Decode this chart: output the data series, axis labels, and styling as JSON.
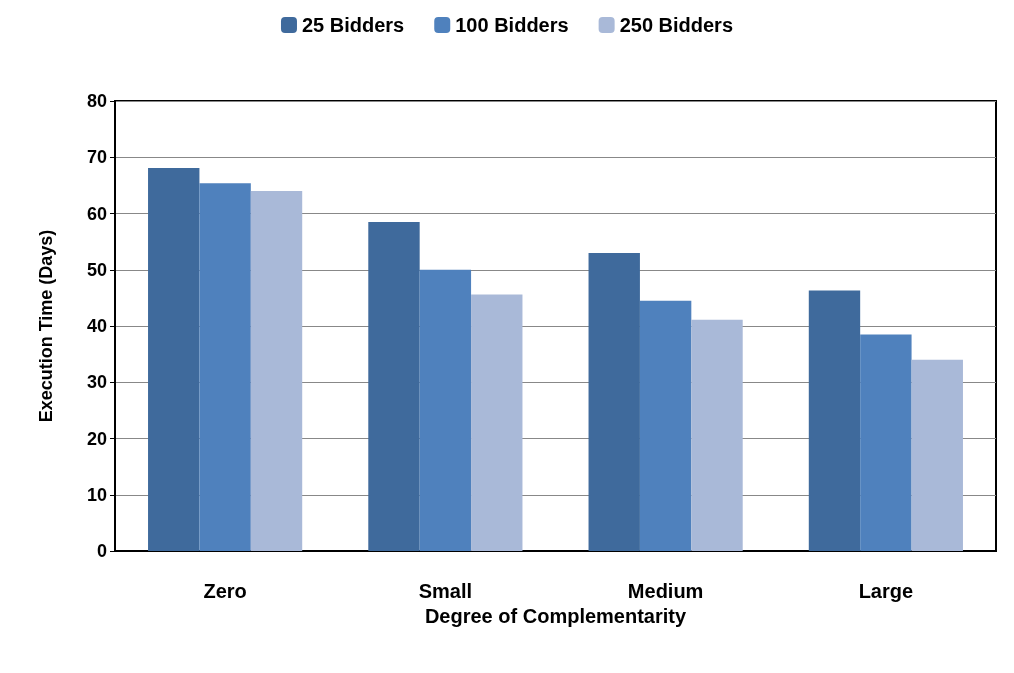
{
  "chart_data": {
    "type": "bar",
    "xlabel": "Degree of Complementarity",
    "ylabel": "Execution Time (Days)",
    "categories": [
      "Zero",
      "Small",
      "Medium",
      "Large"
    ],
    "series": [
      {
        "name": "25 Bidders",
        "color": "#3f6a9c",
        "values": [
          68.1,
          58.5,
          53,
          46.3
        ]
      },
      {
        "name": "100 Bidders",
        "color": "#4f81bd",
        "values": [
          65.4,
          50,
          44.5,
          38.5
        ]
      },
      {
        "name": "250 Bidders",
        "color": "#a9b9d8",
        "values": [
          64,
          45.6,
          41.1,
          34
        ]
      }
    ],
    "ylim": [
      0,
      80
    ],
    "yticks": [
      0,
      10,
      20,
      30,
      40,
      50,
      60,
      70,
      80
    ],
    "grid": "y",
    "legend": "top"
  }
}
